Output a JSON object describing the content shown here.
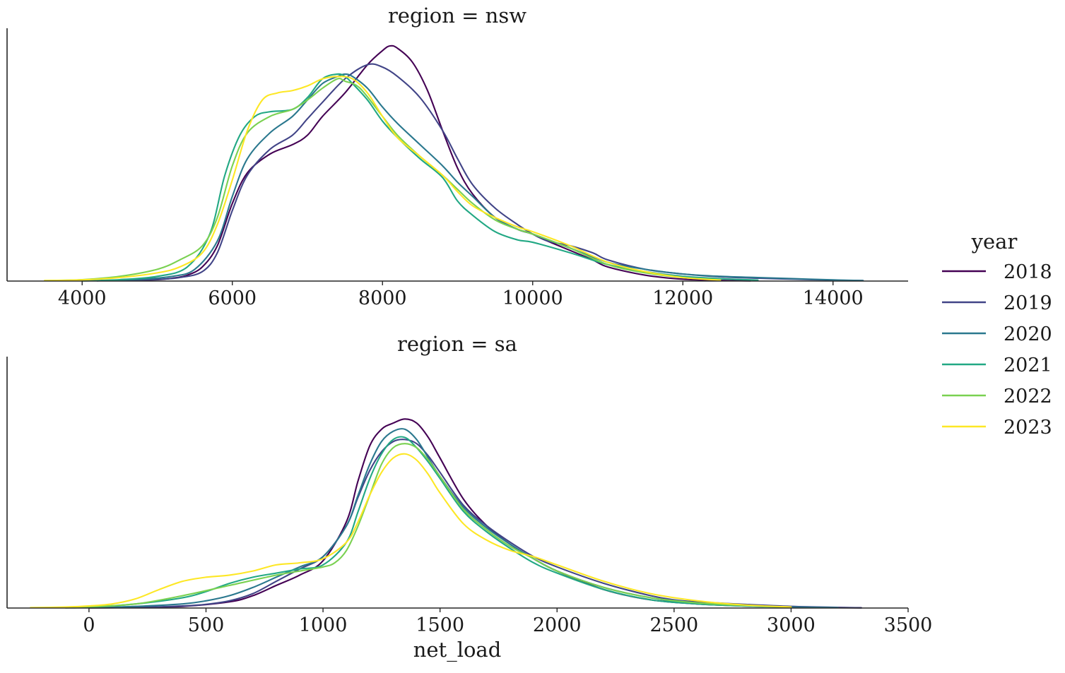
{
  "chart_data": {
    "type": "line",
    "legend": {
      "title": "year",
      "placement": "right",
      "entries": [
        {
          "label": "2018",
          "color": "#440154"
        },
        {
          "label": "2019",
          "color": "#414487"
        },
        {
          "label": "2020",
          "color": "#2a788e"
        },
        {
          "label": "2021",
          "color": "#22a884"
        },
        {
          "label": "2022",
          "color": "#7ad151"
        },
        {
          "label": "2023",
          "color": "#fde725"
        }
      ]
    },
    "panels": [
      {
        "title": "region = nsw",
        "xlabel": "",
        "ylabel": "",
        "xlim": [
          3000,
          15000
        ],
        "ylim": [
          0,
          1.0
        ],
        "xticks": [
          4000,
          6000,
          8000,
          10000,
          12000,
          14000
        ],
        "xtick_labels": [
          "4000",
          "6000",
          "8000",
          "10000",
          "12000",
          "14000"
        ],
        "series": [
          {
            "name": "2018",
            "x": [
              4700,
              5000,
              5200,
              5400,
              5600,
              5800,
              6000,
              6200,
              6500,
              6800,
              7000,
              7200,
              7500,
              7800,
              8000,
              8100,
              8200,
              8400,
              8600,
              8800,
              9000,
              9200,
              9500,
              9800,
              10000,
              10200,
              10500,
              10800,
              11000,
              11500,
              12000,
              12500,
              12900
            ],
            "y": [
              0.002,
              0.006,
              0.012,
              0.025,
              0.06,
              0.15,
              0.33,
              0.46,
              0.54,
              0.58,
              0.62,
              0.7,
              0.8,
              0.92,
              0.98,
              1.0,
              0.99,
              0.93,
              0.81,
              0.64,
              0.48,
              0.37,
              0.27,
              0.22,
              0.2,
              0.17,
              0.13,
              0.09,
              0.06,
              0.025,
              0.008,
              0.003,
              0.001
            ]
          },
          {
            "name": "2019",
            "x": [
              4500,
              5000,
              5300,
              5600,
              5800,
              6000,
              6200,
              6500,
              6800,
              7000,
              7200,
              7500,
              7800,
              8000,
              8200,
              8500,
              8800,
              9000,
              9200,
              9500,
              9800,
              10000,
              10200,
              10500,
              10800,
              11000,
              11500,
              12000,
              12500,
              13000,
              13500,
              14000,
              14400
            ],
            "y": [
              0.002,
              0.007,
              0.015,
              0.04,
              0.12,
              0.3,
              0.45,
              0.56,
              0.62,
              0.69,
              0.76,
              0.86,
              0.92,
              0.91,
              0.87,
              0.78,
              0.64,
              0.52,
              0.41,
              0.31,
              0.24,
              0.2,
              0.17,
              0.15,
              0.12,
              0.09,
              0.05,
              0.03,
              0.018,
              0.012,
              0.008,
              0.004,
              0.002
            ]
          },
          {
            "name": "2020",
            "x": [
              4200,
              4800,
              5200,
              5500,
              5800,
              6000,
              6200,
              6500,
              6800,
              7000,
              7200,
              7400,
              7500,
              7600,
              7800,
              8000,
              8200,
              8500,
              8800,
              9000,
              9200,
              9500,
              9800,
              10000,
              10500,
              11000,
              11500,
              12000,
              12500,
              13000,
              13500,
              14000,
              14400
            ],
            "y": [
              0.001,
              0.008,
              0.02,
              0.05,
              0.17,
              0.36,
              0.52,
              0.63,
              0.7,
              0.77,
              0.84,
              0.87,
              0.88,
              0.87,
              0.82,
              0.74,
              0.67,
              0.58,
              0.49,
              0.42,
              0.36,
              0.27,
              0.22,
              0.2,
              0.14,
              0.08,
              0.05,
              0.03,
              0.02,
              0.015,
              0.01,
              0.005,
              0.002
            ]
          },
          {
            "name": "2021",
            "x": [
              4000,
              4500,
              5000,
              5400,
              5700,
              5900,
              6100,
              6300,
              6500,
              6800,
              7000,
              7200,
              7400,
              7500,
              7600,
              7800,
              8000,
              8200,
              8500,
              8800,
              9000,
              9200,
              9500,
              9800,
              10000,
              10500,
              11000,
              11500,
              12000,
              12500,
              13000
            ],
            "y": [
              0.001,
              0.006,
              0.02,
              0.06,
              0.2,
              0.45,
              0.62,
              0.7,
              0.72,
              0.73,
              0.78,
              0.86,
              0.88,
              0.87,
              0.84,
              0.77,
              0.68,
              0.61,
              0.52,
              0.44,
              0.34,
              0.28,
              0.21,
              0.175,
              0.165,
              0.12,
              0.07,
              0.04,
              0.02,
              0.01,
              0.004
            ]
          },
          {
            "name": "2022",
            "x": [
              3500,
              4000,
              4500,
              5000,
              5300,
              5600,
              5800,
              6000,
              6200,
              6500,
              6800,
              7000,
              7200,
              7400,
              7500,
              7700,
              8000,
              8200,
              8500,
              8800,
              9000,
              9200,
              9500,
              9800,
              10000,
              10500,
              11000,
              11500,
              12000,
              12500
            ],
            "y": [
              0.002,
              0.006,
              0.02,
              0.05,
              0.09,
              0.15,
              0.27,
              0.49,
              0.63,
              0.7,
              0.73,
              0.77,
              0.82,
              0.86,
              0.85,
              0.82,
              0.7,
              0.62,
              0.53,
              0.45,
              0.39,
              0.33,
              0.26,
              0.22,
              0.2,
              0.14,
              0.07,
              0.035,
              0.015,
              0.005
            ]
          },
          {
            "name": "2023",
            "x": [
              3500,
              4000,
              4500,
              5000,
              5300,
              5600,
              5800,
              6000,
              6200,
              6400,
              6600,
              6800,
              7000,
              7200,
              7400,
              7600,
              7800,
              8000,
              8200,
              8500,
              8800,
              9000,
              9200,
              9500,
              9800,
              10000,
              10500,
              11000,
              11500,
              12000,
              12500
            ],
            "y": [
              0.002,
              0.005,
              0.015,
              0.035,
              0.06,
              0.12,
              0.24,
              0.43,
              0.64,
              0.77,
              0.8,
              0.81,
              0.83,
              0.86,
              0.87,
              0.86,
              0.8,
              0.7,
              0.61,
              0.53,
              0.45,
              0.38,
              0.32,
              0.27,
              0.23,
              0.21,
              0.15,
              0.08,
              0.04,
              0.015,
              0.004
            ]
          }
        ]
      },
      {
        "title": "region = sa",
        "xlabel": "net_load",
        "ylabel": "",
        "xlim": [
          -350,
          3500
        ],
        "ylim": [
          0,
          1.0
        ],
        "xticks": [
          0,
          500,
          1000,
          1500,
          2000,
          2500,
          3000,
          3500
        ],
        "xtick_labels": [
          "0",
          "500",
          "1000",
          "1500",
          "2000",
          "2500",
          "3000",
          "3500"
        ],
        "series": [
          {
            "name": "2018",
            "x": [
              0,
              200,
              400,
              600,
              700,
              800,
              900,
              1000,
              1100,
              1150,
              1200,
              1250,
              1300,
              1350,
              1400,
              1450,
              1500,
              1600,
              1700,
              1800,
              1900,
              2000,
              2200,
              2400,
              2600,
              2800,
              3000,
              3200,
              3300
            ],
            "y": [
              0.001,
              0.003,
              0.008,
              0.03,
              0.06,
              0.11,
              0.16,
              0.23,
              0.42,
              0.62,
              0.79,
              0.87,
              0.9,
              0.92,
              0.9,
              0.83,
              0.73,
              0.53,
              0.4,
              0.31,
              0.24,
              0.18,
              0.09,
              0.04,
              0.02,
              0.01,
              0.005,
              0.002,
              0.001
            ]
          },
          {
            "name": "2019",
            "x": [
              0,
              200,
              400,
              500,
              600,
              700,
              800,
              900,
              1000,
              1100,
              1150,
              1200,
              1250,
              1300,
              1350,
              1400,
              1450,
              1500,
              1600,
              1700,
              1800,
              1900,
              2000,
              2200,
              2400,
              2500,
              2600,
              2800,
              3000,
              3200,
              3300
            ],
            "y": [
              0.001,
              0.003,
              0.01,
              0.018,
              0.035,
              0.07,
              0.13,
              0.19,
              0.25,
              0.4,
              0.54,
              0.67,
              0.76,
              0.81,
              0.82,
              0.8,
              0.74,
              0.66,
              0.5,
              0.4,
              0.32,
              0.25,
              0.2,
              0.12,
              0.06,
              0.04,
              0.03,
              0.018,
              0.008,
              0.003,
              0.001
            ]
          },
          {
            "name": "2020",
            "x": [
              0,
              200,
              400,
              500,
              600,
              700,
              800,
              900,
              1000,
              1100,
              1150,
              1200,
              1250,
              1300,
              1350,
              1400,
              1450,
              1500,
              1600,
              1700,
              1800,
              1900,
              2000,
              2200,
              2400,
              2600,
              2800,
              3000,
              3200
            ],
            "y": [
              0.002,
              0.008,
              0.02,
              0.035,
              0.06,
              0.1,
              0.15,
              0.2,
              0.25,
              0.4,
              0.55,
              0.7,
              0.81,
              0.86,
              0.87,
              0.82,
              0.73,
              0.64,
              0.49,
              0.39,
              0.31,
              0.24,
              0.18,
              0.1,
              0.05,
              0.02,
              0.012,
              0.005,
              0.002
            ]
          },
          {
            "name": "2021",
            "x": [
              -100,
              0,
              200,
              400,
              500,
              600,
              700,
              800,
              900,
              1000,
              1100,
              1150,
              1200,
              1250,
              1300,
              1350,
              1400,
              1450,
              1500,
              1600,
              1700,
              1800,
              1900,
              2000,
              2200,
              2400,
              2600,
              2800,
              3000
            ],
            "y": [
              0.001,
              0.004,
              0.02,
              0.05,
              0.08,
              0.12,
              0.15,
              0.17,
              0.19,
              0.21,
              0.32,
              0.47,
              0.63,
              0.75,
              0.82,
              0.83,
              0.78,
              0.71,
              0.63,
              0.47,
              0.37,
              0.29,
              0.22,
              0.17,
              0.09,
              0.04,
              0.02,
              0.01,
              0.004
            ]
          },
          {
            "name": "2022",
            "x": [
              -150,
              0,
              200,
              400,
              600,
              800,
              900,
              1000,
              1050,
              1100,
              1150,
              1200,
              1250,
              1300,
              1350,
              1400,
              1450,
              1500,
              1600,
              1700,
              1800,
              1900,
              2000,
              2200,
              2400,
              2600,
              2800,
              3000
            ],
            "y": [
              0.002,
              0.006,
              0.02,
              0.06,
              0.11,
              0.16,
              0.18,
              0.2,
              0.22,
              0.28,
              0.4,
              0.55,
              0.7,
              0.78,
              0.8,
              0.78,
              0.72,
              0.64,
              0.48,
              0.38,
              0.3,
              0.24,
              0.18,
              0.1,
              0.05,
              0.025,
              0.012,
              0.004
            ]
          },
          {
            "name": "2023",
            "x": [
              -250,
              -100,
              0,
              100,
              200,
              300,
              400,
              500,
              600,
              700,
              800,
              900,
              1000,
              1100,
              1150,
              1200,
              1250,
              1300,
              1350,
              1400,
              1450,
              1500,
              1600,
              1700,
              1800,
              1900,
              2000,
              2200,
              2400,
              2600,
              2800,
              3000
            ],
            "y": [
              0.002,
              0.005,
              0.01,
              0.02,
              0.045,
              0.09,
              0.13,
              0.15,
              0.16,
              0.18,
              0.21,
              0.22,
              0.24,
              0.32,
              0.42,
              0.55,
              0.66,
              0.73,
              0.75,
              0.72,
              0.65,
              0.56,
              0.41,
              0.33,
              0.28,
              0.25,
              0.21,
              0.13,
              0.07,
              0.035,
              0.015,
              0.005
            ]
          }
        ]
      }
    ]
  }
}
